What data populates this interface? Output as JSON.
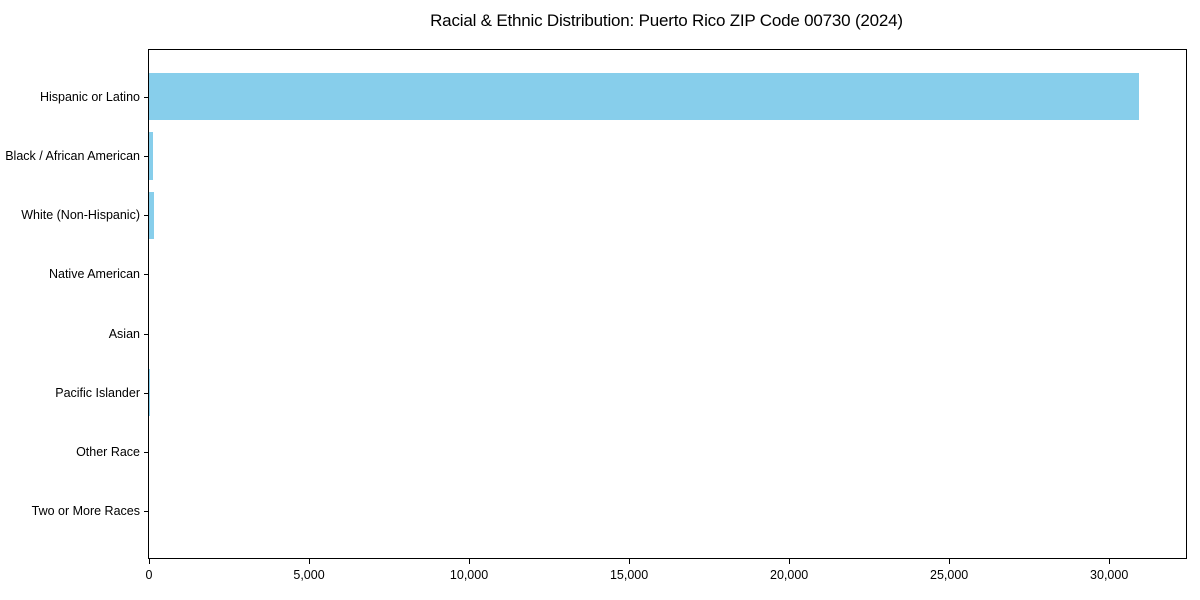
{
  "title": "Racial & Ethnic Distribution: Puerto Rico ZIP Code 00730 (2024)",
  "chart_data": {
    "type": "bar",
    "orientation": "horizontal",
    "title": "Racial & Ethnic Distribution: Puerto Rico ZIP Code 00730 (2024)",
    "xlabel": "",
    "ylabel": "",
    "categories": [
      "Hispanic or Latino",
      "Black / African American",
      "White (Non-Hispanic)",
      "Native American",
      "Asian",
      "Pacific Islander",
      "Other Race",
      "Two or More Races"
    ],
    "values": [
      30936,
      131,
      148,
      0,
      0,
      14,
      0,
      0
    ],
    "xlim": [
      0,
      32400
    ],
    "xticks": [
      0,
      5000,
      10000,
      15000,
      20000,
      25000,
      30000
    ],
    "xtick_labels": [
      "0",
      "5,000",
      "10,000",
      "15,000",
      "20,000",
      "25,000",
      "30,000"
    ],
    "bar_color": "#87ceeb",
    "grid": false,
    "legend": null,
    "background_color": "#ffffff",
    "axis_color": "#000000"
  }
}
